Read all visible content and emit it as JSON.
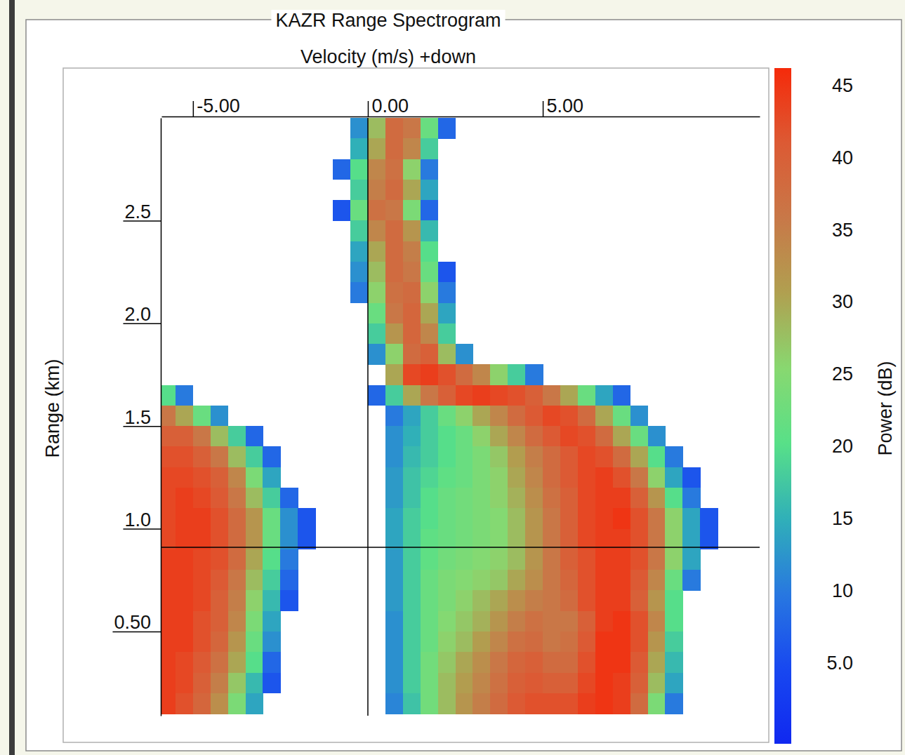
{
  "chart_data": {
    "type": "heatmap",
    "title": "KAZR Range Spectrogram",
    "x_label": "Velocity (m/s) +down",
    "y_label": "Range (km)",
    "xlim": [
      -5.9,
      11.2
    ],
    "xticks": [
      {
        "value": -5,
        "label": "-5.00"
      },
      {
        "value": 0,
        "label": "0.00"
      },
      {
        "value": 5,
        "label": "5.00"
      }
    ],
    "ylim": [
      0.09,
      3.0
    ],
    "yticks": [
      {
        "value": 0.5,
        "label": "0.50"
      },
      {
        "value": 1,
        "label": "1.0"
      },
      1.5,
      {
        "value": 2,
        "label": "2.0"
      },
      2.5
    ],
    "crosshair": {
      "x": 0,
      "y": 0.91
    },
    "colorbar": {
      "label": "Power (dB)",
      "lim": [
        -0.6,
        46.2
      ],
      "ticks": [
        {
          "value": 5,
          "label": "5.0"
        },
        10,
        15,
        20,
        25,
        30,
        35,
        40,
        45
      ]
    },
    "cells": {
      "x": [
        -5.75,
        -5.25,
        -4.75,
        -4.25,
        -3.75,
        -3.25,
        -2.75,
        -2.25,
        -1.75,
        -1.25,
        -0.75,
        -0.25,
        0.25,
        0.75,
        1.25,
        1.75,
        2.25,
        2.75,
        3.25,
        3.75,
        4.25,
        4.75,
        5.25,
        5.75,
        6.25,
        6.75,
        7.25,
        7.75,
        8.25,
        8.75,
        9.25,
        9.75,
        10.25,
        10.75
      ],
      "y": [
        2.95,
        2.85,
        2.75,
        2.65,
        2.55,
        2.45,
        2.35,
        2.25,
        2.15,
        2.05,
        1.95,
        1.85,
        1.75,
        1.65,
        1.55,
        1.45,
        1.35,
        1.25,
        1.15,
        1.05,
        0.95,
        0.85,
        0.75,
        0.65,
        0.55,
        0.45,
        0.35,
        0.25,
        0.15
      ],
      "values": [
        [
          null,
          null,
          null,
          null,
          null,
          null,
          null,
          null,
          null,
          null,
          null,
          12,
          28,
          38,
          36,
          22,
          8,
          null,
          null,
          null,
          null,
          null,
          null,
          null,
          null,
          null,
          null,
          null,
          null,
          null,
          null,
          null,
          null,
          null
        ],
        [
          null,
          null,
          null,
          null,
          null,
          null,
          null,
          null,
          null,
          null,
          null,
          15,
          30,
          38,
          34,
          18,
          null,
          null,
          null,
          null,
          null,
          null,
          null,
          null,
          null,
          null,
          null,
          null,
          null,
          null,
          null,
          null,
          null,
          null
        ],
        [
          null,
          null,
          null,
          null,
          null,
          null,
          null,
          null,
          null,
          null,
          8,
          20,
          34,
          37,
          26,
          10,
          null,
          null,
          null,
          null,
          null,
          null,
          null,
          null,
          null,
          null,
          null,
          null,
          null,
          null,
          null,
          null,
          null,
          null
        ],
        [
          null,
          null,
          null,
          null,
          null,
          null,
          null,
          null,
          null,
          null,
          null,
          18,
          35,
          38,
          30,
          14,
          null,
          null,
          null,
          null,
          null,
          null,
          null,
          null,
          null,
          null,
          null,
          null,
          null,
          null,
          null,
          null,
          null,
          null
        ],
        [
          null,
          null,
          null,
          null,
          null,
          null,
          null,
          null,
          null,
          null,
          6,
          22,
          37,
          36,
          24,
          8,
          null,
          null,
          null,
          null,
          null,
          null,
          null,
          null,
          null,
          null,
          null,
          null,
          null,
          null,
          null,
          null,
          null,
          null
        ],
        [
          null,
          null,
          null,
          null,
          null,
          null,
          null,
          null,
          null,
          null,
          null,
          18,
          34,
          38,
          32,
          16,
          null,
          null,
          null,
          null,
          null,
          null,
          null,
          null,
          null,
          null,
          null,
          null,
          null,
          null,
          null,
          null,
          null,
          null
        ],
        [
          null,
          null,
          null,
          null,
          null,
          null,
          null,
          null,
          null,
          null,
          null,
          14,
          30,
          38,
          35,
          20,
          null,
          null,
          null,
          null,
          null,
          null,
          null,
          null,
          null,
          null,
          null,
          null,
          null,
          null,
          null,
          null,
          null,
          null
        ],
        [
          null,
          null,
          null,
          null,
          null,
          null,
          null,
          null,
          null,
          null,
          null,
          12,
          28,
          38,
          36,
          22,
          6,
          null,
          null,
          null,
          null,
          null,
          null,
          null,
          null,
          null,
          null,
          null,
          null,
          null,
          null,
          null,
          null,
          null
        ],
        [
          null,
          null,
          null,
          null,
          null,
          null,
          null,
          null,
          null,
          null,
          null,
          10,
          26,
          37,
          38,
          26,
          10,
          null,
          null,
          null,
          null,
          null,
          null,
          null,
          null,
          null,
          null,
          null,
          null,
          null,
          null,
          null,
          null,
          null
        ],
        [
          null,
          null,
          null,
          null,
          null,
          null,
          null,
          null,
          null,
          null,
          null,
          null,
          22,
          36,
          39,
          30,
          14,
          null,
          null,
          null,
          null,
          null,
          null,
          null,
          null,
          null,
          null,
          null,
          null,
          null,
          null,
          null,
          null,
          null
        ],
        [
          null,
          null,
          null,
          null,
          null,
          null,
          null,
          null,
          null,
          null,
          null,
          null,
          18,
          32,
          39,
          34,
          18,
          null,
          null,
          null,
          null,
          null,
          null,
          null,
          null,
          null,
          null,
          null,
          null,
          null,
          null,
          null,
          null,
          null
        ],
        [
          null,
          null,
          null,
          null,
          null,
          null,
          null,
          null,
          null,
          null,
          null,
          null,
          12,
          26,
          38,
          40,
          28,
          12,
          null,
          null,
          null,
          null,
          null,
          null,
          null,
          null,
          null,
          null,
          null,
          null,
          null,
          null,
          null,
          null
        ],
        [
          null,
          null,
          null,
          null,
          null,
          null,
          null,
          null,
          null,
          null,
          null,
          null,
          null,
          30,
          43,
          44,
          42,
          38,
          34,
          26,
          18,
          10,
          null,
          null,
          null,
          null,
          null,
          null,
          null,
          null,
          null,
          null,
          null,
          null
        ],
        [
          20,
          10,
          null,
          null,
          null,
          null,
          null,
          null,
          null,
          null,
          null,
          null,
          8,
          18,
          30,
          36,
          40,
          43,
          44,
          43,
          42,
          40,
          36,
          30,
          22,
          14,
          8,
          null,
          null,
          null,
          null,
          null,
          null,
          null
        ],
        [
          36,
          30,
          22,
          12,
          null,
          null,
          null,
          null,
          null,
          null,
          null,
          null,
          null,
          10,
          14,
          18,
          22,
          26,
          30,
          34,
          38,
          41,
          43,
          42,
          38,
          30,
          22,
          12,
          null,
          null,
          null,
          null,
          null,
          null
        ],
        [
          40,
          40,
          36,
          28,
          18,
          8,
          null,
          null,
          null,
          null,
          null,
          null,
          null,
          12,
          15,
          18,
          20,
          22,
          26,
          30,
          34,
          38,
          41,
          43,
          42,
          38,
          30,
          22,
          12,
          null,
          null,
          null,
          null,
          null
        ],
        [
          42,
          42,
          40,
          36,
          28,
          18,
          8,
          null,
          null,
          null,
          null,
          null,
          null,
          12,
          16,
          18,
          20,
          22,
          24,
          27,
          31,
          35,
          38,
          41,
          43,
          42,
          38,
          30,
          20,
          10,
          null,
          null,
          null,
          null
        ],
        [
          43,
          43,
          42,
          40,
          34,
          24,
          14,
          null,
          null,
          null,
          null,
          null,
          null,
          13,
          17,
          19,
          21,
          22,
          24,
          26,
          30,
          34,
          38,
          41,
          43,
          44,
          42,
          36,
          26,
          14,
          6,
          null,
          null,
          null
        ],
        [
          43,
          44,
          43,
          41,
          36,
          28,
          18,
          8,
          null,
          null,
          null,
          null,
          null,
          13,
          17,
          20,
          22,
          23,
          24,
          26,
          29,
          33,
          37,
          40,
          43,
          44,
          44,
          40,
          32,
          20,
          10,
          null,
          null,
          null
        ],
        [
          43,
          44,
          44,
          42,
          38,
          32,
          22,
          12,
          6,
          null,
          null,
          null,
          null,
          14,
          18,
          20,
          22,
          23,
          24,
          25,
          28,
          32,
          36,
          40,
          43,
          44,
          45,
          42,
          36,
          26,
          14,
          6,
          null,
          null
        ],
        [
          43,
          44,
          44,
          42,
          38,
          32,
          22,
          12,
          6,
          null,
          null,
          null,
          null,
          14,
          18,
          21,
          22,
          23,
          24,
          25,
          28,
          32,
          36,
          40,
          43,
          44,
          44,
          42,
          36,
          26,
          14,
          6,
          null,
          null
        ],
        [
          44,
          44,
          43,
          42,
          38,
          30,
          20,
          10,
          null,
          null,
          null,
          null,
          null,
          13,
          18,
          21,
          23,
          24,
          25,
          26,
          28,
          32,
          36,
          40,
          42,
          44,
          44,
          42,
          36,
          26,
          14,
          null,
          null,
          null
        ],
        [
          44,
          44,
          43,
          41,
          36,
          28,
          18,
          8,
          null,
          null,
          null,
          null,
          null,
          13,
          18,
          22,
          24,
          25,
          26,
          27,
          30,
          33,
          36,
          39,
          42,
          44,
          44,
          41,
          34,
          22,
          10,
          null,
          null,
          null
        ],
        [
          44,
          44,
          43,
          40,
          35,
          26,
          16,
          6,
          null,
          null,
          null,
          null,
          null,
          13,
          18,
          22,
          24,
          26,
          28,
          30,
          33,
          35,
          36,
          38,
          42,
          44,
          44,
          40,
          32,
          20,
          null,
          null,
          null,
          null
        ],
        [
          44,
          44,
          42,
          40,
          34,
          24,
          14,
          null,
          null,
          null,
          null,
          null,
          null,
          12,
          18,
          22,
          25,
          27,
          29,
          32,
          35,
          37,
          36,
          36,
          40,
          44,
          45,
          42,
          34,
          20,
          null,
          null,
          null,
          null
        ],
        [
          44,
          44,
          42,
          39,
          32,
          22,
          12,
          null,
          null,
          null,
          null,
          null,
          null,
          12,
          18,
          22,
          26,
          28,
          31,
          34,
          37,
          38,
          36,
          37,
          41,
          45,
          45,
          42,
          32,
          18,
          null,
          null,
          null,
          null
        ],
        [
          44,
          43,
          41,
          37,
          30,
          20,
          8,
          null,
          null,
          null,
          null,
          null,
          null,
          12,
          18,
          23,
          27,
          30,
          33,
          36,
          39,
          40,
          38,
          38,
          42,
          45,
          45,
          41,
          30,
          16,
          null,
          null,
          null,
          null
        ],
        [
          44,
          43,
          40,
          35,
          27,
          16,
          6,
          null,
          null,
          null,
          null,
          null,
          null,
          12,
          18,
          23,
          28,
          31,
          34,
          37,
          40,
          41,
          40,
          40,
          43,
          45,
          44,
          40,
          28,
          14,
          null,
          null,
          null,
          null
        ],
        [
          44,
          42,
          39,
          33,
          24,
          14,
          null,
          null,
          null,
          null,
          null,
          null,
          null,
          11,
          17,
          23,
          28,
          32,
          35,
          38,
          41,
          42,
          42,
          42,
          44,
          45,
          44,
          38,
          24,
          10,
          null,
          null,
          null,
          null
        ]
      ]
    }
  }
}
